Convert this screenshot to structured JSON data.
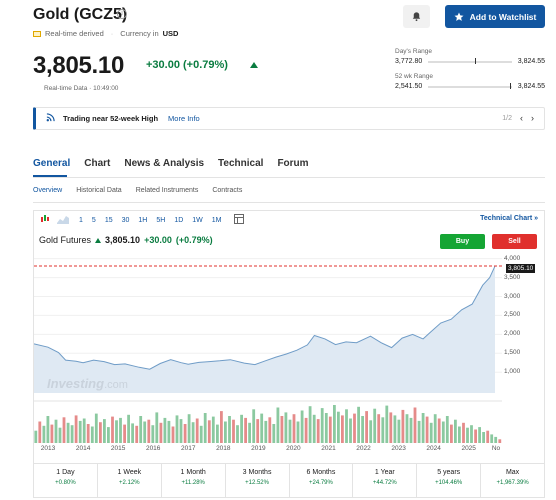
{
  "header": {
    "title": "Gold (GCZ5)",
    "info_glyph": "i",
    "realtime_derived": "Real-time derived",
    "currency_label": "Currency in",
    "currency": "USD",
    "watchlist_label": "Add to Watchlist",
    "watchlist_icon": "star-icon",
    "alert_icon": "bell-plus-icon"
  },
  "quote": {
    "price": "3,805.10",
    "change": "+30.00",
    "change_pct": "(+0.79%)",
    "direction": "up",
    "realtime_text": "Real-time Data · 10:49:00",
    "up_color": "#0a7c40"
  },
  "ranges": {
    "day_label": "Day's Range",
    "day_low": "3,772.80",
    "day_high": "3,824.55",
    "wk52_label": "52 wk Range",
    "wk52_low": "2,541.50",
    "wk52_high": "3,824.55"
  },
  "banner": {
    "text": "Trading near 52-week High",
    "link": "More Info",
    "pager": "1/2",
    "prev": "‹",
    "next": "›"
  },
  "tabs": [
    "General",
    "Chart",
    "News & Analysis",
    "Technical",
    "Forum"
  ],
  "subtabs": [
    "Overview",
    "Historical Data",
    "Related Instruments",
    "Contracts"
  ],
  "chart_toolbar": {
    "periods": [
      "1",
      "5",
      "15",
      "30",
      "1H",
      "5H",
      "1D",
      "1W",
      "1M"
    ],
    "technical_chart": "Technical Chart »"
  },
  "futures": {
    "name": "Gold Futures",
    "price": "3,805.10",
    "change": "+30.00",
    "change_pct": "(+0.79%)",
    "buy": "Buy",
    "sell": "Sell",
    "buy_color": "#15a534",
    "sell_color": "#e0302d"
  },
  "watermark": {
    "brand": "Investing",
    "suffix": ".com"
  },
  "chart_data": {
    "type": "area",
    "x": [
      2012.6,
      2013.0,
      2013.3,
      2013.5,
      2013.8,
      2014.0,
      2014.3,
      2014.6,
      2014.9,
      2015.2,
      2015.6,
      2015.9,
      2016.2,
      2016.5,
      2016.8,
      2017.0,
      2017.3,
      2017.6,
      2017.9,
      2018.2,
      2018.6,
      2018.9,
      2019.2,
      2019.5,
      2019.8,
      2020.1,
      2020.4,
      2020.6,
      2020.9,
      2021.2,
      2021.5,
      2021.8,
      2022.2,
      2022.5,
      2022.8,
      2023.1,
      2023.4,
      2023.7,
      2023.9,
      2024.2,
      2024.5,
      2024.8,
      2025.1,
      2025.4,
      2025.6,
      2025.75
    ],
    "values": [
      1750,
      1660,
      1520,
      1320,
      1290,
      1250,
      1320,
      1280,
      1200,
      1220,
      1130,
      1080,
      1230,
      1330,
      1250,
      1210,
      1260,
      1280,
      1300,
      1330,
      1240,
      1200,
      1300,
      1400,
      1480,
      1580,
      1720,
      1970,
      1880,
      1730,
      1800,
      1780,
      1950,
      1780,
      1650,
      1900,
      2000,
      1880,
      2050,
      2300,
      2400,
      2650,
      2800,
      3300,
      3500,
      3805.1
    ],
    "xlabel": "",
    "ylabel": "",
    "ylim": [
      450,
      4150
    ],
    "yticks": [
      "4,000",
      "3,500",
      "3,000",
      "2,500",
      "2,000",
      "1,500",
      "1,000"
    ],
    "ytick_values": [
      4000,
      3500,
      3000,
      2500,
      2000,
      1500,
      1000
    ],
    "xticks": [
      "2013",
      "2014",
      "2015",
      "2016",
      "2017",
      "2018",
      "2019",
      "2020",
      "2021",
      "2022",
      "2023",
      "2024",
      "2025",
      "No"
    ],
    "xtick_values": [
      2013,
      2014,
      2015,
      2016,
      2017,
      2018,
      2019,
      2020,
      2021,
      2022,
      2023,
      2024,
      2025,
      2025.9
    ],
    "current_label": "3,805.10",
    "area_color": "#dfe9f3",
    "line_color": "#6f9cc7",
    "legend": "none"
  },
  "volume_data": {
    "bars": [
      20,
      35,
      28,
      44,
      30,
      38,
      25,
      42,
      33,
      29,
      45,
      36,
      40,
      31,
      27,
      48,
      34,
      39,
      26,
      43,
      37,
      41,
      30,
      46,
      32,
      28,
      44,
      35,
      38,
      29,
      50,
      33,
      41,
      36,
      27,
      45,
      39,
      31,
      47,
      34,
      40,
      28,
      49,
      37,
      43,
      30,
      52,
      35,
      44,
      38,
      29,
      46,
      41,
      33,
      55,
      39,
      48,
      36,
      42,
      31,
      58,
      44,
      50,
      38,
      47,
      35,
      53,
      41,
      60,
      46,
      39,
      57,
      49,
      43,
      62,
      51,
      45,
      55,
      40,
      48,
      59,
      44,
      52,
      37,
      56,
      47,
      42,
      61,
      50,
      45,
      38,
      54,
      47,
      41,
      58,
      36,
      49,
      43,
      33,
      47,
      40,
      35,
      44,
      30,
      38,
      27,
      33,
      25,
      29,
      22,
      26,
      18,
      20,
      14,
      10,
      6
    ],
    "up_color": "#8bc9a0",
    "down_color": "#e58b8a"
  },
  "periods": [
    {
      "label": "1 Day",
      "pct": "+0.80%"
    },
    {
      "label": "1 Week",
      "pct": "+2.12%"
    },
    {
      "label": "1 Month",
      "pct": "+11.28%"
    },
    {
      "label": "3 Months",
      "pct": "+12.52%"
    },
    {
      "label": "6 Months",
      "pct": "+24.79%"
    },
    {
      "label": "1 Year",
      "pct": "+44.72%"
    },
    {
      "label": "5 years",
      "pct": "+104.46%"
    },
    {
      "label": "Max",
      "pct": "+1,967.39%"
    }
  ]
}
